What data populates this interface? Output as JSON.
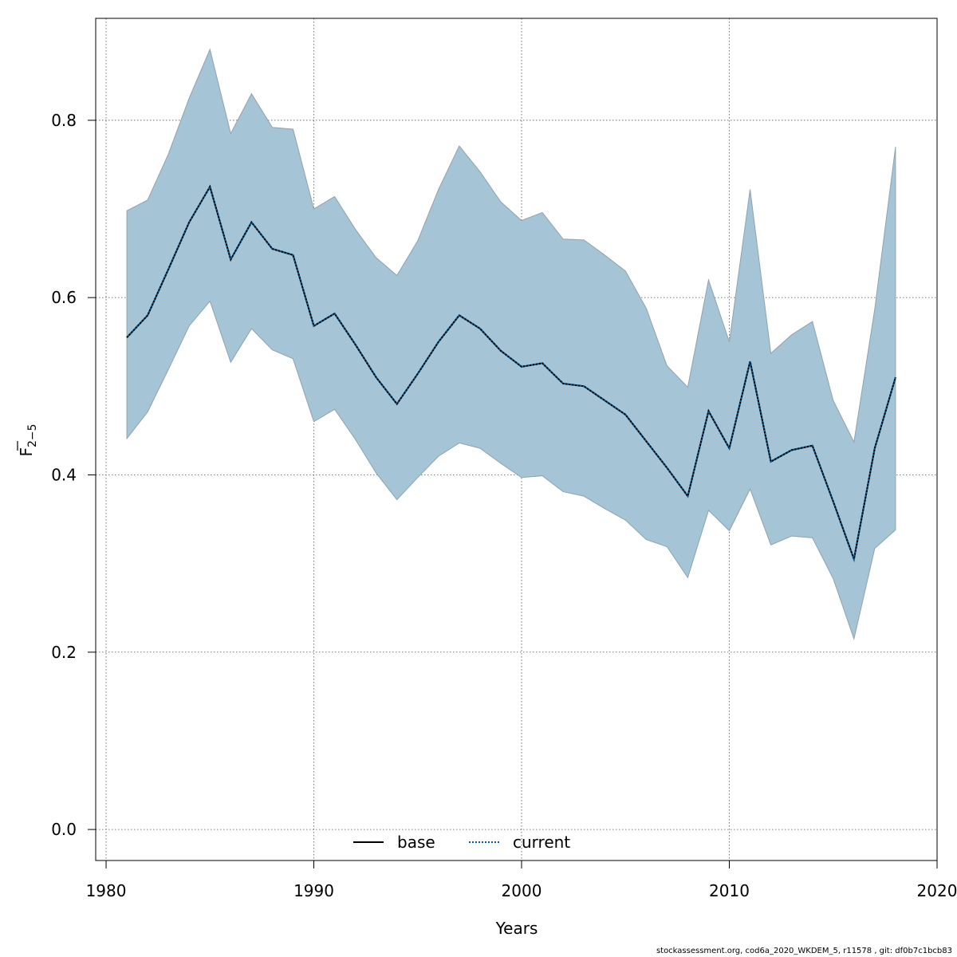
{
  "chart_data": {
    "type": "line",
    "title": "",
    "xlabel": "Years",
    "ylabel_main": "F",
    "ylabel_sub": "2−5",
    "xlim": [
      1979.5,
      2020
    ],
    "ylim": [
      -0.035,
      0.915
    ],
    "xticks": [
      1980,
      1990,
      2000,
      2010,
      2020
    ],
    "yticks": [
      0.0,
      0.2,
      0.4,
      0.6,
      0.8
    ],
    "ytick_labels": [
      "0.0",
      "0.2",
      "0.4",
      "0.6",
      "0.8"
    ],
    "grid": true,
    "legend_position": "bottom-center",
    "colors": {
      "band_fill": "#a5c4d5",
      "band_edge": "#8fa3ad",
      "base_line": "#000000",
      "current_line": "#005b96"
    },
    "x": [
      1981,
      1982,
      1983,
      1984,
      1985,
      1986,
      1987,
      1988,
      1989,
      1990,
      1991,
      1992,
      1993,
      1994,
      1995,
      1996,
      1997,
      1998,
      1999,
      2000,
      2001,
      2002,
      2003,
      2004,
      2005,
      2006,
      2007,
      2008,
      2009,
      2010,
      2011,
      2012,
      2013,
      2014,
      2015,
      2016,
      2017,
      2018
    ],
    "series": [
      {
        "name": "base",
        "style": "solid",
        "values": [
          0.555,
          0.58,
          0.632,
          0.685,
          0.725,
          0.643,
          0.685,
          0.655,
          0.648,
          0.568,
          0.582,
          0.547,
          0.51,
          0.48,
          0.514,
          0.55,
          0.58,
          0.565,
          0.54,
          0.522,
          0.526,
          0.503,
          0.5,
          0.484,
          0.468,
          0.438,
          0.408,
          0.376,
          0.472,
          0.43,
          0.528,
          0.415,
          0.428,
          0.433,
          0.37,
          0.305,
          0.43,
          0.51
        ]
      },
      {
        "name": "current",
        "style": "dotted",
        "values": [
          0.555,
          0.58,
          0.632,
          0.685,
          0.725,
          0.643,
          0.685,
          0.655,
          0.648,
          0.568,
          0.582,
          0.547,
          0.51,
          0.48,
          0.514,
          0.55,
          0.58,
          0.565,
          0.54,
          0.522,
          0.526,
          0.503,
          0.5,
          0.484,
          0.468,
          0.438,
          0.408,
          0.376,
          0.472,
          0.43,
          0.528,
          0.415,
          0.428,
          0.433,
          0.37,
          0.305,
          0.43,
          0.51
        ]
      }
    ],
    "confidence_band": {
      "upper": [
        0.698,
        0.71,
        0.762,
        0.825,
        0.88,
        0.785,
        0.83,
        0.792,
        0.79,
        0.7,
        0.714,
        0.677,
        0.645,
        0.625,
        0.664,
        0.722,
        0.771,
        0.742,
        0.708,
        0.687,
        0.696,
        0.666,
        0.665,
        0.648,
        0.63,
        0.588,
        0.523,
        0.499,
        0.62,
        0.55,
        0.722,
        0.537,
        0.558,
        0.573,
        0.484,
        0.437,
        0.587,
        0.77
      ],
      "lower": [
        0.441,
        0.471,
        0.519,
        0.568,
        0.596,
        0.527,
        0.565,
        0.541,
        0.531,
        0.46,
        0.474,
        0.44,
        0.402,
        0.372,
        0.397,
        0.421,
        0.436,
        0.43,
        0.413,
        0.397,
        0.399,
        0.381,
        0.376,
        0.362,
        0.349,
        0.327,
        0.319,
        0.284,
        0.36,
        0.337,
        0.384,
        0.321,
        0.331,
        0.329,
        0.283,
        0.215,
        0.317,
        0.338
      ]
    }
  },
  "footer": "stockassessment.org, cod6a_2020_WKDEM_5, r11578 , git: df0b7c1bcb83"
}
